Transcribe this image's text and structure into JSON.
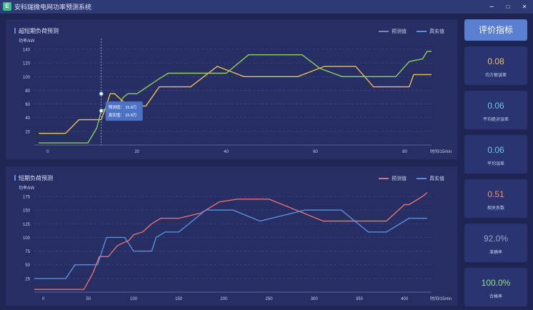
{
  "window": {
    "title": "安科瑞微电网功率预测系统",
    "icon_text": "E",
    "minimize": "–",
    "maximize": "□",
    "close": "✕"
  },
  "eval_button": "评价指标",
  "metrics": [
    {
      "value": "0.08",
      "label": "均方根误差",
      "color": "#f0c060"
    },
    {
      "value": "0.06",
      "label": "平均绝对误差",
      "color": "#6ec6f0"
    },
    {
      "value": "0.06",
      "label": "平均误差",
      "color": "#6ec6f0"
    },
    {
      "value": "0.51",
      "label": "相关系数",
      "color": "#f09050"
    },
    {
      "value": "92.0%",
      "label": "准确率",
      "color": "#9aa3c7"
    },
    {
      "value": "100.0%",
      "label": "合格率",
      "color": "#90e080"
    }
  ],
  "chart_data": [
    {
      "title": "超短期负荷预测",
      "type": "line",
      "ylabel": "功率/kW",
      "xlabel": "时间/15min",
      "ylim": [
        0,
        140
      ],
      "yticks": [
        20,
        40,
        60,
        80,
        100,
        120,
        140
      ],
      "xlim": [
        -3,
        86
      ],
      "xticks": [
        0,
        20,
        40,
        60,
        80
      ],
      "legend": [
        "预测值",
        "真实值"
      ],
      "series": [
        {
          "name": "预测值",
          "color": "#f0c050",
          "x": [
            -2,
            4,
            7,
            12,
            13,
            14,
            15,
            18,
            22,
            25,
            32,
            38,
            44,
            56,
            62,
            69,
            73,
            81,
            82,
            86
          ],
          "y": [
            17,
            17,
            37,
            37,
            55,
            75,
            75,
            57,
            57,
            85,
            85,
            115,
            100,
            100,
            115,
            115,
            85,
            85,
            103,
            103
          ]
        },
        {
          "name": "真实值",
          "color": "#8ed058",
          "x": [
            -2,
            9,
            11,
            12,
            16,
            17,
            18,
            20,
            25,
            27,
            33,
            40,
            45,
            57,
            61,
            66,
            71,
            78,
            81,
            84,
            85,
            86
          ],
          "y": [
            3,
            3,
            25,
            50,
            60,
            70,
            75,
            75,
            97,
            105,
            105,
            105,
            132,
            132,
            112,
            100,
            100,
            100,
            122,
            126,
            137,
            137
          ]
        }
      ],
      "tooltip": {
        "x": 12,
        "y_pred": 75,
        "y_real": 50,
        "pred_label": "预测值：",
        "pred_value": "15.8万",
        "real_label": "真实值：",
        "real_value": "15.8万"
      }
    },
    {
      "title": "短期负荷预测",
      "type": "line",
      "ylabel": "功率/kW",
      "xlabel": "时间/15min",
      "ylim": [
        0,
        175
      ],
      "yticks": [
        25,
        50,
        75,
        100,
        125,
        150,
        175
      ],
      "xlim": [
        -10,
        430
      ],
      "xticks": [
        0,
        50,
        100,
        150,
        200,
        250,
        300,
        350,
        400
      ],
      "legend": [
        "预测值",
        "真实值"
      ],
      "series": [
        {
          "name": "预测值",
          "color": "#e87070",
          "x": [
            -10,
            20,
            45,
            55,
            62,
            72,
            82,
            95,
            100,
            110,
            120,
            130,
            140,
            150,
            175,
            195,
            215,
            250,
            280,
            310,
            330,
            380,
            400,
            405,
            420,
            425
          ],
          "y": [
            5,
            5,
            5,
            35,
            65,
            65,
            85,
            95,
            105,
            110,
            125,
            135,
            135,
            135,
            145,
            165,
            170,
            170,
            150,
            130,
            130,
            130,
            160,
            160,
            175,
            182
          ]
        },
        {
          "name": "真实值",
          "color": "#5b8fe0",
          "x": [
            -10,
            25,
            35,
            60,
            70,
            80,
            90,
            100,
            120,
            125,
            135,
            150,
            180,
            210,
            240,
            290,
            330,
            360,
            380,
            405,
            425
          ],
          "y": [
            25,
            25,
            50,
            50,
            100,
            100,
            100,
            75,
            75,
            100,
            110,
            110,
            150,
            150,
            130,
            150,
            150,
            110,
            110,
            135,
            135
          ]
        }
      ]
    }
  ]
}
